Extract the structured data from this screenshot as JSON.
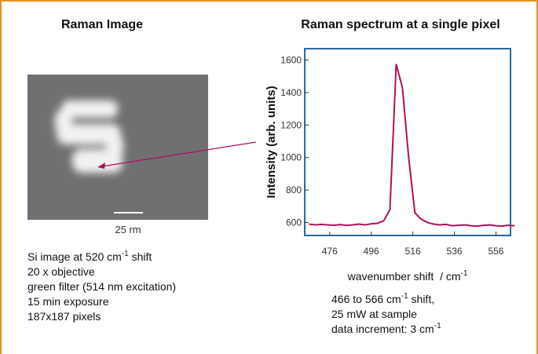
{
  "left_panel": {
    "title": "Raman Image",
    "scale_label": "25 rm",
    "notes": [
      [
        "Si image at 520 cm",
        "-1",
        " shift"
      ],
      [
        "20 x objective"
      ],
      [
        "green filter (514 nm excitation)"
      ],
      [
        "15 min exposure"
      ],
      [
        "187x187 pixels"
      ]
    ]
  },
  "right_notes": [
    [
      "466 to 566 cm",
      "-1",
      " shift,"
    ],
    [
      "25 mW at sample"
    ],
    [
      "data increment: 3 cm",
      "-1"
    ]
  ],
  "chart_data": {
    "type": "line",
    "title": "Raman spectrum at a single pixel",
    "x_label": "wavenumber shift  / cm",
    "x_label_sup": "-1",
    "y_label": "Intensity (arb. units)",
    "x": [
      466,
      469,
      472,
      475,
      478,
      481,
      484,
      487,
      490,
      493,
      496,
      499,
      502,
      505,
      508,
      511,
      514,
      517,
      520,
      523,
      526,
      529,
      532,
      535,
      538,
      541,
      544,
      547,
      550,
      553,
      556,
      559,
      562,
      565
    ],
    "values": [
      590,
      585,
      588,
      585,
      583,
      587,
      582,
      585,
      590,
      585,
      592,
      595,
      610,
      680,
      1575,
      1430,
      1000,
      660,
      620,
      600,
      590,
      585,
      588,
      580,
      583,
      585,
      580,
      578,
      582,
      585,
      580,
      578,
      583,
      580
    ],
    "color": "#b0105a",
    "xlim": [
      464,
      563
    ],
    "xticks": [
      476,
      496,
      516,
      536,
      556
    ],
    "ylim": [
      520,
      1670
    ],
    "yticks": [
      600,
      800,
      1000,
      1200,
      1400,
      1600
    ],
    "frame_color": "#2a6aa0"
  }
}
